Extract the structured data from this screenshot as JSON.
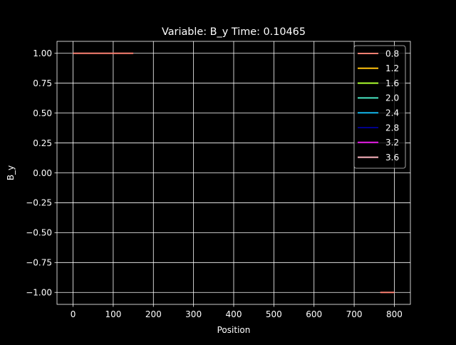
{
  "chart_data": {
    "type": "line",
    "title": "Variable: B_y Time: 0.10465",
    "xlabel": "Position",
    "ylabel": "B_y",
    "xlim": [
      -40,
      840
    ],
    "ylim": [
      -1.1,
      1.1
    ],
    "xticks": [
      0,
      100,
      200,
      300,
      400,
      500,
      600,
      700,
      800
    ],
    "xtick_labels": [
      "0",
      "100",
      "200",
      "300",
      "400",
      "500",
      "600",
      "700",
      "800"
    ],
    "yticks": [
      1.0,
      0.75,
      0.5,
      0.25,
      0.0,
      -0.25,
      -0.5,
      -0.75,
      -1.0
    ],
    "ytick_labels": [
      "1.00",
      "0.75",
      "0.50",
      "0.25",
      "0.00",
      "−0.25",
      "−0.50",
      "−0.75",
      "−1.00"
    ],
    "grid": true,
    "legend_position": "top-right",
    "series": [
      {
        "name": "0.8",
        "color": "#fa8072",
        "points": [
          [
            0,
            1.0
          ],
          [
            150,
            1.0
          ],
          [
            null,
            null
          ],
          [
            765,
            -1.0
          ],
          [
            800,
            -1.0
          ]
        ]
      },
      {
        "name": "1.2",
        "color": "#ffc20e",
        "points": []
      },
      {
        "name": "1.6",
        "color": "#adff2f",
        "points": []
      },
      {
        "name": "2.0",
        "color": "#48e5c2",
        "points": []
      },
      {
        "name": "2.4",
        "color": "#13b5ea",
        "points": []
      },
      {
        "name": "2.8",
        "color": "#00008b",
        "points": []
      },
      {
        "name": "3.2",
        "color": "#e619e6",
        "points": []
      },
      {
        "name": "3.6",
        "color": "#ffb6c1",
        "points": []
      }
    ]
  }
}
